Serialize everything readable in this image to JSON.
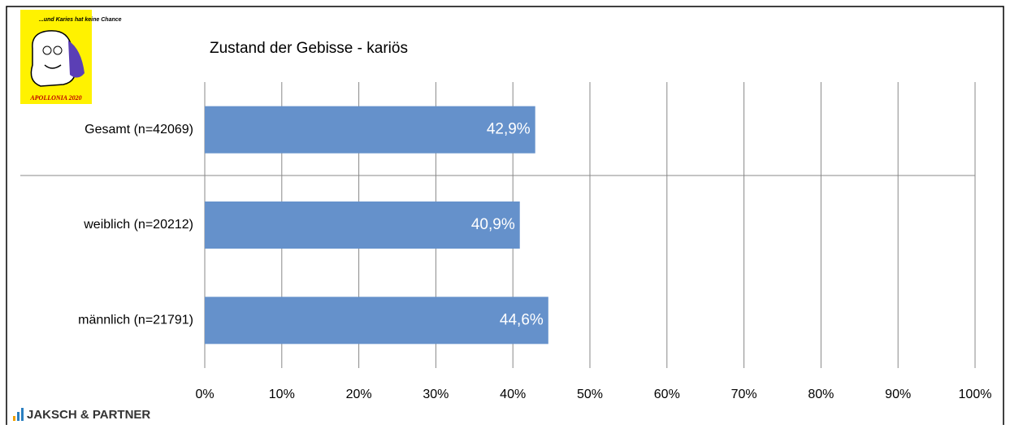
{
  "chart_data": {
    "type": "barh",
    "title": "Zustand der Gebisse - kariös",
    "categories": [
      "Gesamt (n=42069)",
      "weiblich (n=20212)",
      "männlich (n=21791)"
    ],
    "values": [
      42.9,
      40.9,
      44.6
    ],
    "value_labels": [
      "42,9%",
      "40,9%",
      "44,6%"
    ],
    "color": "#6591cb",
    "xlim": [
      0,
      100
    ],
    "xticks": [
      {
        "value": 0,
        "label": "0%"
      },
      {
        "value": 10,
        "label": "10%"
      },
      {
        "value": 20,
        "label": "20%"
      },
      {
        "value": 30,
        "label": "30%"
      },
      {
        "value": 40,
        "label": "40%"
      },
      {
        "value": 50,
        "label": "50%"
      },
      {
        "value": 60,
        "label": "60%"
      },
      {
        "value": 70,
        "label": "70%"
      },
      {
        "value": 80,
        "label": "80%"
      },
      {
        "value": 90,
        "label": "90%"
      },
      {
        "value": 100,
        "label": "100%"
      }
    ],
    "grid": true,
    "logo": {
      "slogan": "...und Karies hat keine Chance",
      "name": "APOLLONIA 2020"
    },
    "footer": "JAKSCH & PARTNER"
  }
}
